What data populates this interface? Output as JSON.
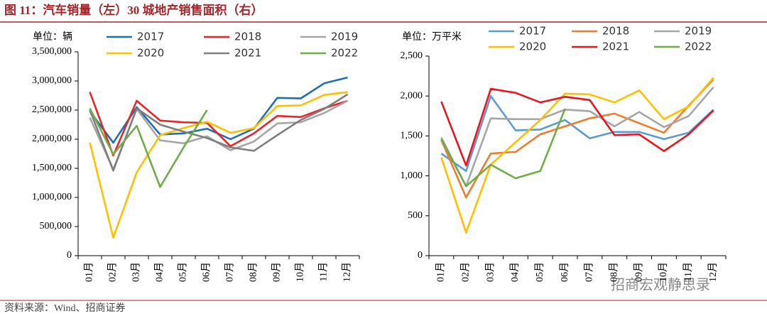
{
  "title": "图 11：汽车销量（左）30 城地产销售面积（右）",
  "source": "资料来源：Wind、招商证券",
  "watermark": "招商宏观静思录",
  "chart_data": [
    {
      "type": "line",
      "unit": "单位：辆",
      "categories": [
        "01月",
        "02月",
        "03月",
        "04月",
        "05月",
        "06月",
        "07月",
        "08月",
        "09月",
        "10月",
        "11月",
        "12月"
      ],
      "ylim": [
        0,
        3500000
      ],
      "yticks": [
        0,
        {
          "value": 500000,
          "label": "500,000"
        },
        {
          "value": 1000000,
          "label": "1,000,000"
        },
        {
          "value": 1500000,
          "label": "1,500,000"
        },
        {
          "value": 2000000,
          "label": "2,000,000"
        },
        {
          "value": 2500000,
          "label": "2,500,000"
        },
        {
          "value": 3000000,
          "label": "3,000,000"
        },
        {
          "value": 3500000,
          "label": "3,500,000"
        }
      ],
      "series": [
        {
          "name": "2017",
          "color": "#1f6fb5",
          "values": [
            2480000,
            1940000,
            2550000,
            2080000,
            2100000,
            2180000,
            2000000,
            2180000,
            2710000,
            2700000,
            2960000,
            3060000
          ]
        },
        {
          "name": "2018",
          "color": "#e8262a",
          "values": [
            2810000,
            1720000,
            2660000,
            2320000,
            2290000,
            2280000,
            1880000,
            2100000,
            2400000,
            2380000,
            2530000,
            2660000
          ]
        },
        {
          "name": "2019",
          "color": "#a6a6a6",
          "values": [
            2370000,
            1480000,
            2520000,
            1980000,
            1930000,
            2050000,
            1810000,
            1960000,
            2270000,
            2290000,
            2450000,
            2660000
          ]
        },
        {
          "name": "2020",
          "color": "#ffc000",
          "values": [
            1940000,
            310000,
            1430000,
            2070000,
            2190000,
            2300000,
            2110000,
            2190000,
            2570000,
            2580000,
            2760000,
            2810000
          ]
        },
        {
          "name": "2021",
          "color": "#7f7f7f",
          "values": [
            2500000,
            1460000,
            2530000,
            2250000,
            2130000,
            2020000,
            1860000,
            1800000,
            2070000,
            2330000,
            2520000,
            2770000
          ]
        },
        {
          "name": "2022",
          "color": "#70ad47",
          "values": [
            2530000,
            1740000,
            2230000,
            1180000,
            1860000,
            2500000,
            null,
            null,
            null,
            null,
            null,
            null
          ]
        }
      ]
    },
    {
      "type": "line",
      "unit": "单位：万平米",
      "categories": [
        "01月",
        "02月",
        "03月",
        "04月",
        "05月",
        "06月",
        "07月",
        "08月",
        "09月",
        "10月",
        "11月",
        "12月"
      ],
      "ylim": [
        0,
        2500
      ],
      "yticks": [
        0,
        500,
        {
          "value": 1000,
          "label": "1,000"
        },
        {
          "value": 1500,
          "label": "1,500"
        },
        {
          "value": 2000,
          "label": "2,000"
        },
        {
          "value": 2500,
          "label": "2,500"
        }
      ],
      "series": [
        {
          "name": "2017",
          "color": "#5b9bd5",
          "values": [
            1280,
            1060,
            2000,
            1570,
            1580,
            1700,
            1470,
            1550,
            1550,
            1460,
            1540,
            1830
          ]
        },
        {
          "name": "2018",
          "color": "#ed7d31",
          "values": [
            1450,
            730,
            1280,
            1300,
            1520,
            1620,
            1720,
            1780,
            1660,
            1540,
            1880,
            2210
          ]
        },
        {
          "name": "2019",
          "color": "#a6a6a6",
          "values": [
            1480,
            870,
            1720,
            1710,
            1710,
            1830,
            1810,
            1620,
            1800,
            1610,
            1750,
            2110
          ]
        },
        {
          "name": "2020",
          "color": "#ffc000",
          "values": [
            1230,
            290,
            1140,
            1420,
            1700,
            2030,
            2020,
            1920,
            2070,
            1710,
            1870,
            2230
          ]
        },
        {
          "name": "2021",
          "color": "#e8161e",
          "values": [
            1930,
            1130,
            2090,
            2040,
            1920,
            1990,
            1950,
            1510,
            1520,
            1310,
            1520,
            1820
          ]
        },
        {
          "name": "2022",
          "color": "#70ad47",
          "values": [
            1460,
            870,
            1140,
            970,
            1060,
            1840,
            null,
            null,
            null,
            null,
            null,
            null
          ]
        }
      ]
    }
  ]
}
